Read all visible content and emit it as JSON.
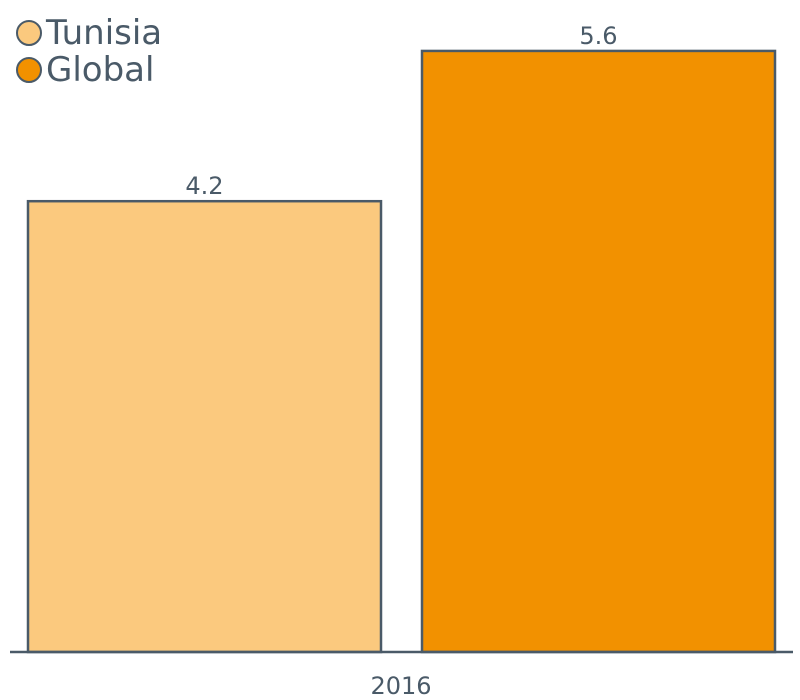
{
  "chart_data": {
    "type": "bar",
    "categories": [
      "2016"
    ],
    "series": [
      {
        "name": "Tunisia",
        "values": [
          4.2
        ],
        "color": "#fbc97e"
      },
      {
        "name": "Global",
        "values": [
          5.6
        ],
        "color": "#f29100"
      }
    ],
    "title": "",
    "xlabel": "",
    "ylabel": "",
    "ylim": [
      0,
      6
    ],
    "grid": false,
    "legend_position": "top-left",
    "data_labels": [
      "4.2",
      "5.6"
    ],
    "outline_color": "#4a5a68",
    "text_color": "#4a5a68"
  }
}
